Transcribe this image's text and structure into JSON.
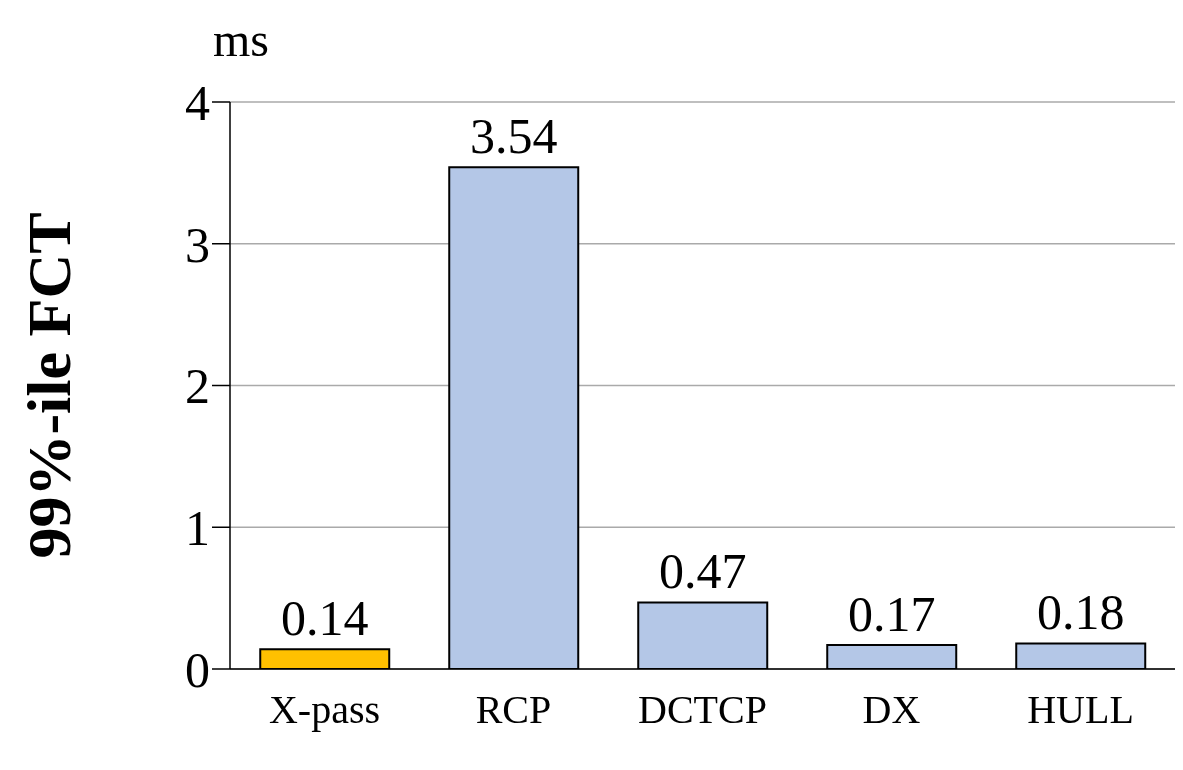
{
  "chart_data": {
    "type": "bar",
    "ylabel": "99%-ile FCT",
    "annotations": [
      "ms"
    ],
    "categories": [
      "X-pass",
      "RCP",
      "DCTCP",
      "DX",
      "HULL"
    ],
    "values": [
      0.14,
      3.54,
      0.47,
      0.17,
      0.18
    ],
    "colors": [
      "#ffc000",
      "#b4c7e7",
      "#b4c7e7",
      "#b4c7e7",
      "#b4c7e7"
    ],
    "ylim": [
      0,
      4
    ],
    "yticks": [
      0,
      1,
      2,
      3,
      4
    ],
    "grid": "y",
    "data_labels": true,
    "legend": false
  }
}
